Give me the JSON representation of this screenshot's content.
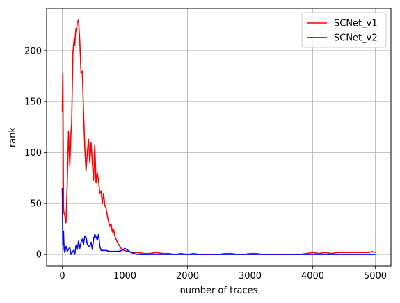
{
  "chart_data": {
    "type": "line",
    "xlabel": "number of traces",
    "ylabel": "rank",
    "xlim": [
      -250,
      5250
    ],
    "ylim": [
      -11.5,
      241.5
    ],
    "xticks": [
      0,
      1000,
      2000,
      3000,
      4000,
      5000
    ],
    "yticks": [
      0,
      50,
      100,
      150,
      200
    ],
    "grid": true,
    "legend_position": "top-right",
    "series": [
      {
        "name": "SCNet_v1",
        "color": "#ff0000",
        "x": [
          0,
          10,
          20,
          30,
          40,
          60,
          80,
          100,
          120,
          140,
          150,
          170,
          190,
          200,
          210,
          220,
          230,
          240,
          260,
          280,
          300,
          320,
          340,
          360,
          380,
          400,
          420,
          440,
          460,
          480,
          500,
          520,
          540,
          560,
          580,
          600,
          620,
          640,
          660,
          680,
          700,
          720,
          740,
          760,
          780,
          800,
          820,
          840,
          860,
          880,
          900,
          920,
          940,
          960,
          980,
          1000,
          1030,
          1060,
          1100,
          1150,
          1200,
          1300,
          1400,
          1500,
          1600,
          1700,
          1800,
          1900,
          2000,
          2100,
          2200,
          2300,
          2400,
          2500,
          2600,
          2700,
          2800,
          2900,
          3000,
          3100,
          3200,
          3500,
          3800,
          3900,
          4000,
          4100,
          4200,
          4300,
          4400,
          4500,
          4600,
          4700,
          4800,
          4900,
          4950,
          5000
        ],
        "values": [
          140,
          178,
          45,
          40,
          38,
          31,
          70,
          121,
          87,
          120,
          128,
          198,
          212,
          205,
          215,
          222,
          219,
          228,
          230,
          210,
          178,
          180,
          140,
          105,
          82,
          100,
          113,
          90,
          110,
          90,
          73,
          108,
          70,
          80,
          72,
          60,
          62,
          50,
          60,
          48,
          45,
          38,
          32,
          28,
          30,
          22,
          25,
          18,
          15,
          12,
          10,
          8,
          6,
          5,
          4,
          4,
          3,
          3,
          2,
          2,
          2,
          1,
          1,
          2,
          1,
          1,
          0,
          1,
          0,
          1,
          0,
          0,
          0,
          0,
          1,
          1,
          0,
          0,
          1,
          1,
          0,
          0,
          0,
          1,
          2,
          1,
          2,
          1,
          2,
          2,
          2,
          2,
          2,
          2,
          3,
          2
        ]
      },
      {
        "name": "SCNet_v2",
        "color": "#0000ff",
        "x": [
          0,
          10,
          20,
          30,
          40,
          60,
          80,
          100,
          120,
          140,
          160,
          180,
          200,
          220,
          240,
          260,
          280,
          300,
          320,
          340,
          360,
          380,
          400,
          420,
          440,
          460,
          480,
          500,
          520,
          540,
          560,
          580,
          600,
          620,
          650,
          700,
          750,
          800,
          850,
          900,
          950,
          1000,
          1050,
          1100,
          1150,
          1200,
          1500,
          2000,
          2500,
          3000,
          3500,
          4000,
          4500,
          5000
        ],
        "values": [
          65,
          10,
          23,
          5,
          2,
          8,
          3,
          5,
          7,
          0,
          2,
          4,
          0,
          9,
          5,
          13,
          6,
          12,
          15,
          10,
          18,
          17,
          10,
          8,
          8,
          12,
          5,
          15,
          20,
          17,
          14,
          20,
          8,
          4,
          4,
          4,
          3,
          3,
          3,
          3,
          4,
          6,
          4,
          2,
          1,
          0,
          0,
          0,
          0,
          0,
          0,
          0,
          0,
          0
        ]
      }
    ]
  }
}
